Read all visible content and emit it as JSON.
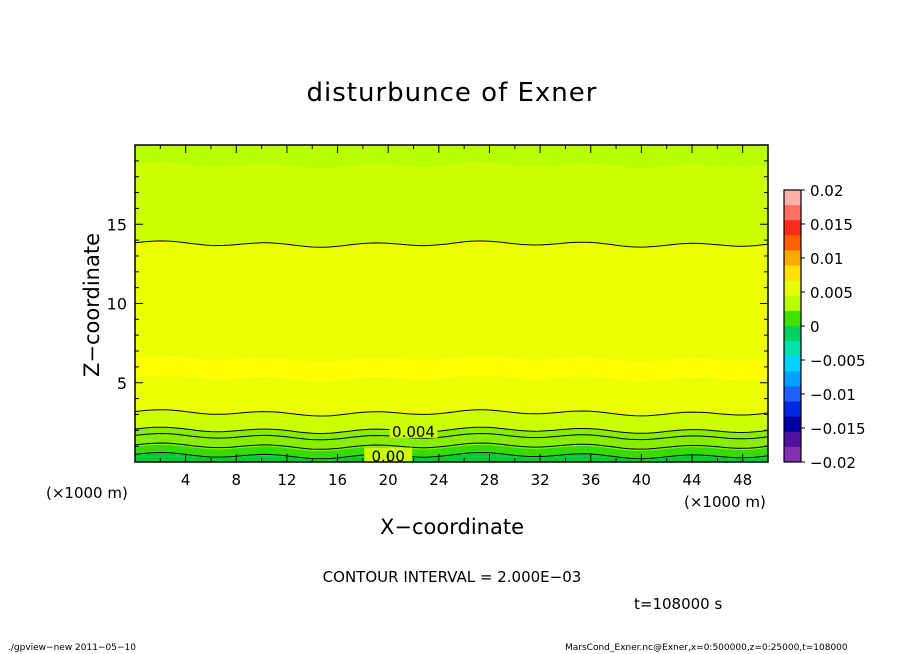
{
  "chart_data": {
    "type": "heatmap",
    "title": "disturbunce of Exner",
    "xlabel": "X−coordinate",
    "ylabel": "Z−coordinate",
    "x_unit_label": "(×1000 m)",
    "z_unit_label": "(×1000 m)",
    "xlim": [
      0,
      50
    ],
    "ylim": [
      0,
      20
    ],
    "x_ticks": [
      4,
      8,
      12,
      16,
      20,
      24,
      28,
      32,
      36,
      40,
      44,
      48
    ],
    "y_ticks": [
      5,
      10,
      15
    ],
    "colorbar": {
      "range": [
        -0.02,
        0.02
      ],
      "labels": [
        "0.02",
        "0.015",
        "0.01",
        "0.005",
        "0",
        "−0.005",
        "−0.01",
        "−0.015",
        "−0.02"
      ],
      "colors": [
        "#ffb0a8",
        "#ff7060",
        "#ff2a1a",
        "#ff6000",
        "#ffa800",
        "#ffe000",
        "#e8ff00",
        "#b8ff00",
        "#40e000",
        "#00d060",
        "#00e0b0",
        "#00d0ff",
        "#00a0ff",
        "#2060ff",
        "#0028e0",
        "#0000a0",
        "#5010a0",
        "#8030b0"
      ]
    },
    "bands": [
      {
        "z_from": 0.0,
        "z_to": 0.35,
        "value": 0.0,
        "color": "#00cc33"
      },
      {
        "z_from": 0.35,
        "z_to": 0.9,
        "value": 0.001,
        "color": "#33dd00"
      },
      {
        "z_from": 0.9,
        "z_to": 2.0,
        "value": 0.003,
        "color": "#88ee00"
      },
      {
        "z_from": 2.0,
        "z_to": 3.1,
        "value": 0.004,
        "color": "#ccff00"
      },
      {
        "z_from": 3.1,
        "z_to": 5.3,
        "value": 0.0055,
        "color": "#ecff00"
      },
      {
        "z_from": 5.3,
        "z_to": 6.5,
        "value": 0.0065,
        "color": "#ffff00"
      },
      {
        "z_from": 6.5,
        "z_to": 13.8,
        "value": 0.0055,
        "color": "#ecff00"
      },
      {
        "z_from": 13.8,
        "z_to": 18.7,
        "value": 0.004,
        "color": "#ccff00"
      },
      {
        "z_from": 18.7,
        "z_to": 20.0,
        "value": 0.0035,
        "color": "#b8ff00"
      }
    ],
    "contours": [
      {
        "z": 0.4,
        "label": ""
      },
      {
        "z": 1.0,
        "label": ""
      },
      {
        "z": 1.6,
        "label": ""
      },
      {
        "z": 2.0,
        "label": ""
      },
      {
        "z": 3.1,
        "label": ""
      },
      {
        "z": 13.75,
        "label": ""
      }
    ],
    "contour_labels": [
      {
        "x": 22,
        "z": 1.9,
        "text": "0.004"
      },
      {
        "x": 20,
        "z": 0.35,
        "text": "0.00"
      }
    ],
    "contour_interval_text": "CONTOUR INTERVAL = 2.000E−03",
    "time_text": "t=108000  s"
  },
  "footer": {
    "left": "./gpview−new   2011−05−10",
    "right": "MarsCond_Exner.nc@Exner,x=0:500000,z=0:25000,t=108000"
  }
}
